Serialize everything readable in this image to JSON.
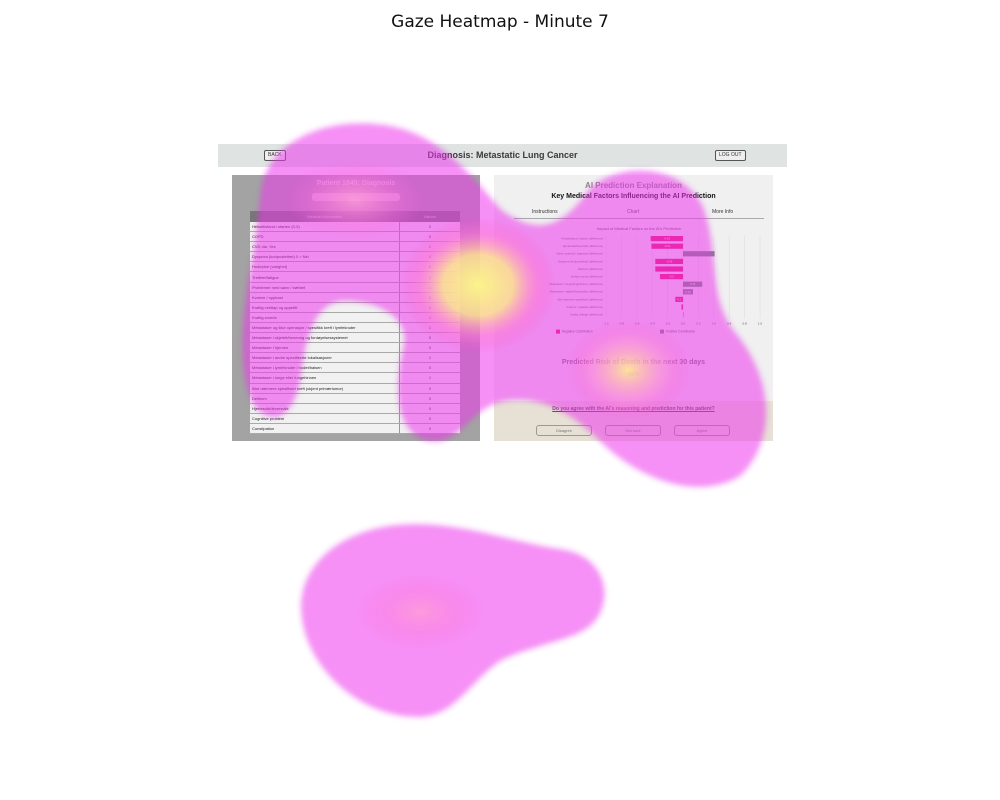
{
  "figure": {
    "title": "Gaze Heatmap - Minute 7"
  },
  "app": {
    "header": {
      "back_label": "BACK",
      "title": "Diagnosis: Metastatic Lung Cancer",
      "logout_label": "LOG OUT"
    },
    "left_panel": {
      "title": "Patient 1845: Diagnosis",
      "table": {
        "headers": [
          "Medical Information",
          "Values"
        ],
        "rows": [
          {
            "label": "Helsetilstand i starten (0-5)",
            "value": "2"
          },
          {
            "label": "COPD",
            "value": "0"
          },
          {
            "label": "CVD dia. Yes",
            "value": "1"
          },
          {
            "label": "Dyspnea (kortpustethet) 0 = Nei",
            "value": "0"
          },
          {
            "label": "Hodepine (varighet)",
            "value": "0"
          },
          {
            "label": "Tretthet/fatigue",
            "value": "1"
          },
          {
            "label": "Problemer med søvn / trøtthet",
            "value": "1"
          },
          {
            "label": "Kvalme / oppkast",
            "value": "0"
          },
          {
            "label": "Kraftig vekttap og appetitt",
            "value": "0"
          },
          {
            "label": "Kraftig smerte",
            "value": "1"
          },
          {
            "label": "Metastaser og ikke operasjon / spesifikk kreft i lymfeknuter",
            "value": "1"
          },
          {
            "label": "Metastaser i skjelett/benmarg og fordøyelsessystemet",
            "value": "0"
          },
          {
            "label": "Metastaser i hjernen",
            "value": "0"
          },
          {
            "label": "Metastaser i andre spesifiserte lokalisasjoner",
            "value": "1"
          },
          {
            "label": "Metastaser i lymfeknuter i hodet/halsen",
            "value": "0"
          },
          {
            "label": "Metastaser i lunge eller lungehinnen",
            "value": "1"
          },
          {
            "label": "Ikke nærmere spesifisert kreft (ukjent primærtumor)",
            "value": "0"
          },
          {
            "label": "Delirium",
            "value": "0"
          },
          {
            "label": "Hjertesvikt/leversvikt",
            "value": "0"
          },
          {
            "label": "Cognitive problem",
            "value": "0"
          },
          {
            "label": "Constipation",
            "value": "0"
          }
        ]
      }
    },
    "right_panel": {
      "title": "AI Prediction Explanation",
      "subtitle": "Key Medical Factors Influencing the AI Prediction",
      "tabs": [
        {
          "label": "Instructions",
          "active": false
        },
        {
          "label": "Chart",
          "active": true
        },
        {
          "label": "More Info",
          "active": false
        }
      ],
      "chart_title": "Impact of Medical Factors on the AI's Prediction",
      "factor_labels": [
        "Helsetilstand i starten (difference)",
        "Hjertesvikt/leversvikt (difference)",
        "Hjerte opphold  i diagnose (difference)",
        "Dyspnea (kortpustethet) (difference)",
        "Delirium (difference)",
        "Kraftig smerte (difference)",
        "Metastaser i lunge/lungehinnen (difference)",
        "Metastaser i skjelett/fordøyelse (difference)",
        "Ikke nærmere spesifisert (difference)",
        "Kvalme / oppkast (difference)",
        "Kraftig vekttap (difference)"
      ],
      "bar_values": [
        -0.42,
        -0.41,
        0.41,
        -0.36,
        -0.36,
        -0.3,
        0.25,
        0.13,
        -0.1,
        -0.02,
        0.0
      ],
      "bar_texts": [
        "-0.42",
        "-0.41",
        "",
        "-0.36",
        "",
        "-0.3",
        "0.25",
        "0.13",
        "-0.1",
        "",
        ""
      ],
      "x_ticks": [
        "-1.0",
        "-0.8",
        "-0.6",
        "-0.4",
        "-0.2",
        "0.0",
        "0.2",
        "0.4",
        "0.6",
        "0.8",
        "1.0"
      ],
      "x_range": [
        -1.0,
        1.0
      ],
      "legend": {
        "negative": "Negative Contribution",
        "positive": "Positive Contribution"
      },
      "colors": {
        "negative": "#e8196e",
        "positive": "#6f8b7b"
      },
      "risk_title": "Predicted Risk of Death in the next 30 days",
      "risk_value": "49%",
      "agree_question": "Do you agree with the AI's reasoning and prediction for this patient?",
      "agree_options": [
        "Disagree",
        "Not sure",
        "Agree"
      ]
    }
  },
  "heatmap": {
    "colors": {
      "low": "#ee33ee",
      "mid": "#ff55cc",
      "high": "#f4f08a"
    }
  }
}
